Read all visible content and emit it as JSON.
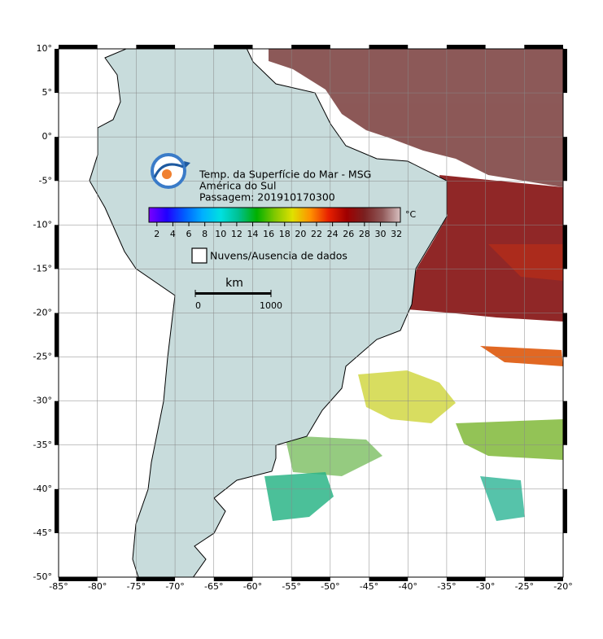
{
  "map": {
    "title": "Temp. da Superfície do Mar - MSG",
    "region": "América do Sul",
    "pass": "Passagem: 201910170300",
    "xlim": [
      -85,
      -20
    ],
    "ylim": [
      -50,
      10
    ],
    "xticks": [
      {
        "value": -85,
        "label": "-85°"
      },
      {
        "value": -80,
        "label": "-80°"
      },
      {
        "value": -75,
        "label": "-75°"
      },
      {
        "value": -70,
        "label": "-70°"
      },
      {
        "value": -65,
        "label": "-65°"
      },
      {
        "value": -60,
        "label": "-60°"
      },
      {
        "value": -55,
        "label": "-55°"
      },
      {
        "value": -50,
        "label": "-50°"
      },
      {
        "value": -45,
        "label": "-45°"
      },
      {
        "value": -40,
        "label": "-40°"
      },
      {
        "value": -35,
        "label": "-35°"
      },
      {
        "value": -30,
        "label": "-30°"
      },
      {
        "value": -25,
        "label": "-25°"
      },
      {
        "value": -20,
        "label": "-20°"
      }
    ],
    "yticks": [
      {
        "value": 10,
        "label": "10°"
      },
      {
        "value": 5,
        "label": "5°"
      },
      {
        "value": 0,
        "label": "0°"
      },
      {
        "value": -5,
        "label": "-5°"
      },
      {
        "value": -10,
        "label": "-10°"
      },
      {
        "value": -15,
        "label": "-15°"
      },
      {
        "value": -20,
        "label": "-20°"
      },
      {
        "value": -25,
        "label": "-25°"
      },
      {
        "value": -30,
        "label": "-30°"
      },
      {
        "value": -35,
        "label": "-35°"
      },
      {
        "value": -40,
        "label": "-40°"
      },
      {
        "value": -45,
        "label": "-45°"
      },
      {
        "value": -50,
        "label": "-50°"
      }
    ],
    "grid": true,
    "colorbar": {
      "lim": [
        1,
        32.5
      ],
      "ticks": [
        2,
        4,
        6,
        8,
        10,
        12,
        14,
        16,
        18,
        20,
        22,
        24,
        26,
        28,
        30,
        32
      ],
      "unit": "°C",
      "colors": [
        "#7a00ff",
        "#2000ff",
        "#0060ff",
        "#00b0ff",
        "#00e0e0",
        "#00c090",
        "#00b000",
        "#80c800",
        "#e0e000",
        "#ff9000",
        "#e82000",
        "#a00000",
        "#7a2020",
        "#905858",
        "#d8c0c0"
      ]
    },
    "legend": "Nuvens/Ausencia de dados",
    "scale_bar": {
      "unit": "km",
      "labels": [
        0,
        1000
      ]
    }
  }
}
